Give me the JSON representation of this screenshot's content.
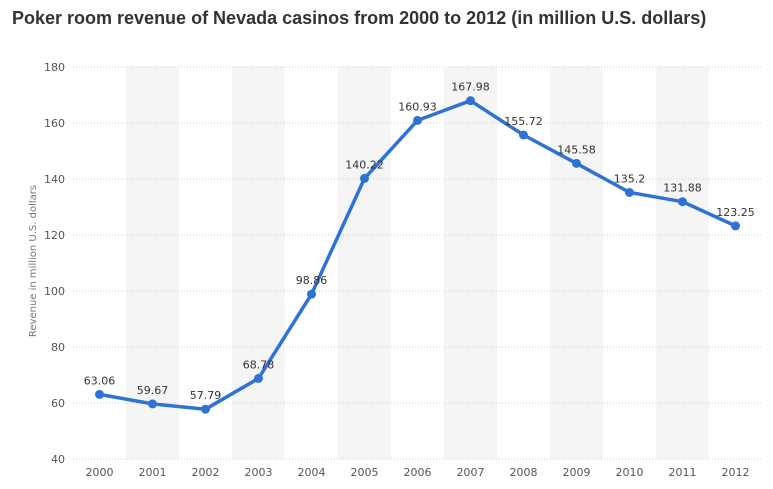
{
  "chart_data": {
    "type": "line",
    "title": "Poker room revenue of Nevada casinos from 2000 to 2012 (in million U.S. dollars)",
    "xlabel": "",
    "ylabel": "Revenue in million U.S. dollars",
    "categories": [
      "2000",
      "2001",
      "2002",
      "2003",
      "2004",
      "2005",
      "2006",
      "2007",
      "2008",
      "2009",
      "2010",
      "2011",
      "2012"
    ],
    "values": [
      63.06,
      59.67,
      57.79,
      68.78,
      98.86,
      140.22,
      160.93,
      167.98,
      155.72,
      145.58,
      135.2,
      131.88,
      123.25
    ],
    "value_labels": [
      "63.06",
      "59.67",
      "57.79",
      "68.78",
      "98.86",
      "140.22",
      "160.93",
      "167.98",
      "155.72",
      "145.58",
      "135.2",
      "131.88",
      "123.25"
    ],
    "ylim": [
      40,
      180
    ],
    "yticks": [
      "40",
      "60",
      "80",
      "100",
      "120",
      "140",
      "160",
      "180"
    ],
    "grid": true,
    "line_color": "#2f72d6",
    "band_color": "#f5f5f5"
  }
}
